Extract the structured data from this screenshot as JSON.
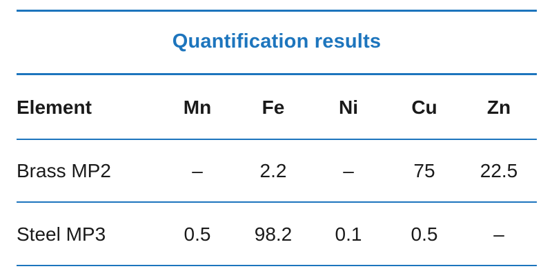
{
  "table": {
    "title": "Quantification results",
    "header": {
      "label": "Element",
      "columns": [
        "Mn",
        "Fe",
        "Ni",
        "Cu",
        "Zn"
      ]
    },
    "rows": [
      {
        "label": "Brass MP2",
        "values": [
          "–",
          "2.2",
          "–",
          "75",
          "22.5"
        ]
      },
      {
        "label": "Steel MP3",
        "values": [
          "0.5",
          "98.2",
          "0.1",
          "0.5",
          "–"
        ]
      }
    ],
    "accent_color": "#1d75bd"
  }
}
